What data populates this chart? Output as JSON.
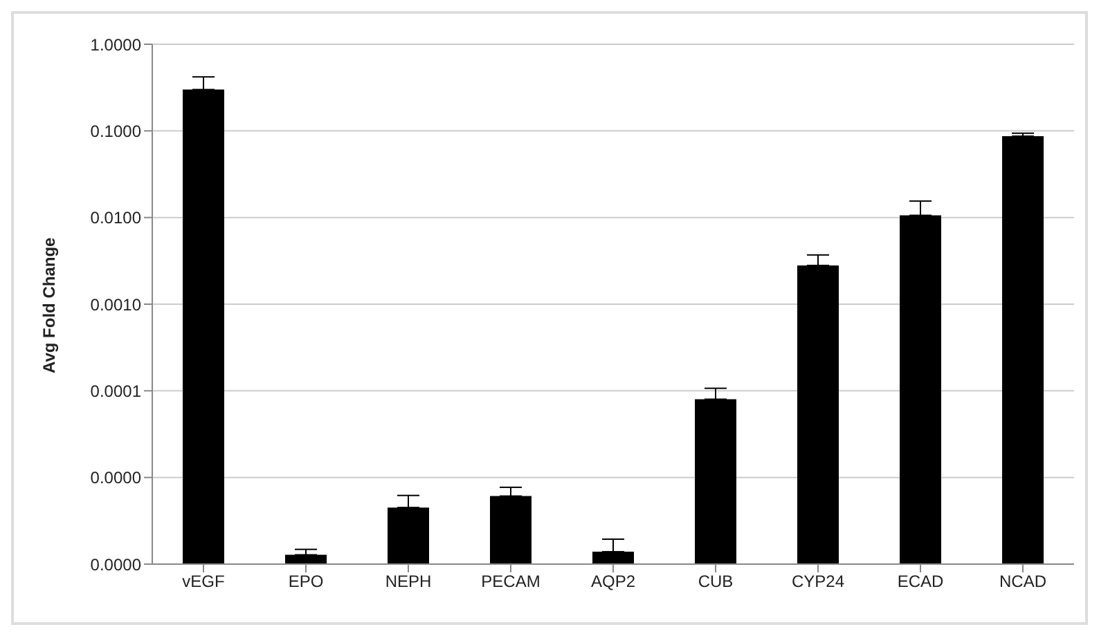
{
  "chart_data": {
    "type": "bar",
    "ylabel": "Avg Fold Change",
    "categories": [
      "vEGF",
      "EPO",
      "NEPH",
      "PECAM",
      "AQP2",
      "CUB",
      "CYP24",
      "ECAD",
      "NCAD"
    ],
    "values": [
      0.3,
      1.28e-06,
      4.5e-06,
      6.1e-06,
      1.39e-06,
      8e-05,
      0.0028,
      0.0106,
      0.087
    ],
    "errors": [
      [
        0.3,
        0.42
      ],
      [
        1.28e-06,
        1.48e-06
      ],
      [
        4.5e-06,
        6.2e-06
      ],
      [
        6.1e-06,
        7.7e-06
      ],
      [
        1.39e-06,
        1.94e-06
      ],
      [
        8e-05,
        0.000107
      ],
      [
        0.0028,
        0.0037
      ],
      [
        0.0106,
        0.0155
      ],
      [
        0.087,
        0.094
      ]
    ],
    "color": "#000000",
    "log": "y",
    "grid": "y",
    "ylim": [
      1e-06,
      1
    ],
    "yticks": [
      {
        "value": 1e-06,
        "label": "0.0000"
      },
      {
        "value": 1e-05,
        "label": "0.0000"
      },
      {
        "value": 0.0001,
        "label": "0.0001"
      },
      {
        "value": 0.001,
        "label": "0.0010"
      },
      {
        "value": 0.01,
        "label": "0.0100"
      },
      {
        "value": 0.1,
        "label": "0.1000"
      },
      {
        "value": 1,
        "label": "1.0000"
      }
    ]
  }
}
